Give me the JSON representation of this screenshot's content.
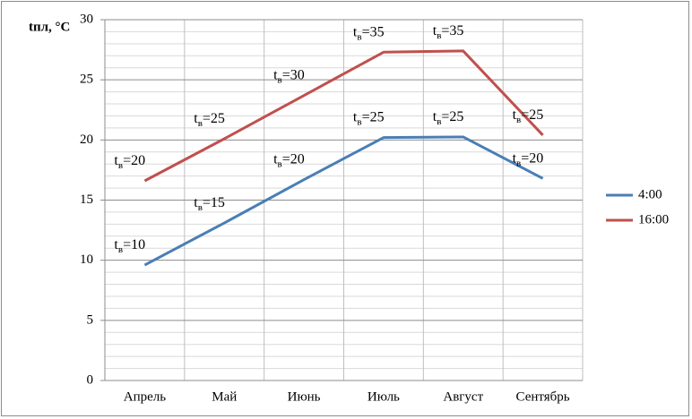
{
  "chart_data": {
    "type": "line",
    "y_label": "tпл, °С",
    "categories": [
      "Апрель",
      "Май",
      "Июнь",
      "Июль",
      "Август",
      "Сентябрь"
    ],
    "series": [
      {
        "name": "4:00",
        "color": "#4a7eb5",
        "values": [
          9.6,
          13.1,
          16.7,
          20.2,
          20.25,
          16.8
        ],
        "label_prefix": "t",
        "label_subscript": "в",
        "annotations": [
          "=10",
          "=15",
          "=20",
          "=25",
          "=25",
          "=20"
        ]
      },
      {
        "name": "16:00",
        "color": "#c0504d",
        "values": [
          16.6,
          20.1,
          23.7,
          27.3,
          27.4,
          20.4
        ],
        "label_prefix": "t",
        "label_subscript": "в",
        "annotations": [
          "=20",
          "=25",
          "=30",
          "=35",
          "=35",
          "=25"
        ]
      }
    ],
    "ylim": [
      0,
      30
    ],
    "yticks": [
      0,
      5,
      10,
      15,
      20,
      25,
      30
    ],
    "minor_yticks": [
      1,
      2,
      3,
      4,
      6,
      7,
      8,
      9,
      11,
      12,
      13,
      14,
      16,
      17,
      18,
      19,
      21,
      22,
      23,
      24,
      26,
      27,
      28,
      29
    ],
    "grid": true,
    "legend": "right"
  }
}
